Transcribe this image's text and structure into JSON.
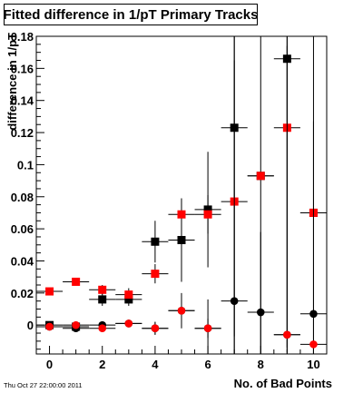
{
  "title": "Fitted difference in 1/pT Primary Tracks",
  "footer": "Thu Oct 27 22:00:00 2011",
  "chart_data": {
    "type": "scatter",
    "title": "Fitted difference in 1/pT Primary Tracks",
    "xlabel": "No. of Bad Points",
    "ylabel": "difference in 1/pT",
    "xlim": [
      -0.5,
      10.5
    ],
    "ylim": [
      -0.018,
      0.18
    ],
    "xticks": [
      "0",
      "2",
      "4",
      "6",
      "8",
      "10"
    ],
    "yticks": [
      "0",
      "0.02",
      "0.04",
      "0.06",
      "0.08",
      "0.1",
      "0.12",
      "0.14",
      "0.16",
      "0.18"
    ],
    "series": [
      {
        "marker": "square",
        "color": "#000000",
        "points": [
          {
            "x": 0,
            "y": 0.0,
            "err": 0.002
          },
          {
            "x": 1,
            "y": -0.001,
            "err": 0.002
          },
          {
            "x": 2,
            "y": 0.016,
            "err": 0.004
          },
          {
            "x": 3,
            "y": 0.016,
            "err": 0.004
          },
          {
            "x": 4,
            "y": 0.052,
            "err": 0.013
          },
          {
            "x": 5,
            "y": 0.053,
            "err": 0.026
          },
          {
            "x": 6,
            "y": 0.072,
            "err": 0.036
          },
          {
            "x": 7,
            "y": 0.123,
            "err": 0.13
          },
          {
            "x": 8,
            "y": 0.093,
            "err": 0.12
          },
          {
            "x": 9,
            "y": 0.166,
            "err": 0.18
          },
          {
            "x": 10,
            "y": 0.07,
            "err": 0.12
          }
        ]
      },
      {
        "marker": "square",
        "color": "#ff0000",
        "points": [
          {
            "x": 0,
            "y": 0.021,
            "err": 0.002
          },
          {
            "x": 1,
            "y": 0.027,
            "err": 0.002
          },
          {
            "x": 2,
            "y": 0.022,
            "err": 0.003
          },
          {
            "x": 3,
            "y": 0.019,
            "err": 0.004
          },
          {
            "x": 4,
            "y": 0.032,
            "err": 0.006
          },
          {
            "x": 5,
            "y": 0.069,
            "err": 0.01
          },
          {
            "x": 6,
            "y": 0.069,
            "err": 0.012
          },
          {
            "x": 7,
            "y": 0.077,
            "err": 0.14
          },
          {
            "x": 8,
            "y": 0.093,
            "err": 0.0
          },
          {
            "x": 9,
            "y": 0.123,
            "err": 0.14
          },
          {
            "x": 10,
            "y": 0.07,
            "err": 0.0
          }
        ]
      },
      {
        "marker": "circle",
        "color": "#000000",
        "points": [
          {
            "x": 0,
            "y": -0.001,
            "err": 0.001
          },
          {
            "x": 1,
            "y": -0.002,
            "err": 0.001
          },
          {
            "x": 2,
            "y": 0.0,
            "err": 0.002
          },
          {
            "x": 3,
            "y": 0.001,
            "err": 0.002
          },
          {
            "x": 4,
            "y": -0.002,
            "err": 0.004
          },
          {
            "x": 5,
            "y": 0.009,
            "err": 0.011
          },
          {
            "x": 6,
            "y": -0.002,
            "err": 0.018
          },
          {
            "x": 7,
            "y": 0.015,
            "err": 0.15
          },
          {
            "x": 8,
            "y": 0.008,
            "err": 0.05
          },
          {
            "x": 9,
            "y": -0.006,
            "err": 0.18
          },
          {
            "x": 10,
            "y": 0.007,
            "err": 0.12
          }
        ]
      },
      {
        "marker": "circle",
        "color": "#ff0000",
        "points": [
          {
            "x": 0,
            "y": -0.001,
            "err": 0.001
          },
          {
            "x": 1,
            "y": 0.0,
            "err": 0.001
          },
          {
            "x": 2,
            "y": -0.002,
            "err": 0.002
          },
          {
            "x": 3,
            "y": 0.001,
            "err": 0.002
          },
          {
            "x": 4,
            "y": -0.002,
            "err": 0.004
          },
          {
            "x": 5,
            "y": 0.009,
            "err": 0.006
          },
          {
            "x": 6,
            "y": -0.002,
            "err": 0.006
          },
          {
            "x": 9,
            "y": -0.006,
            "err": 0.0
          },
          {
            "x": 10,
            "y": -0.012,
            "err": 0.0
          }
        ]
      }
    ]
  }
}
